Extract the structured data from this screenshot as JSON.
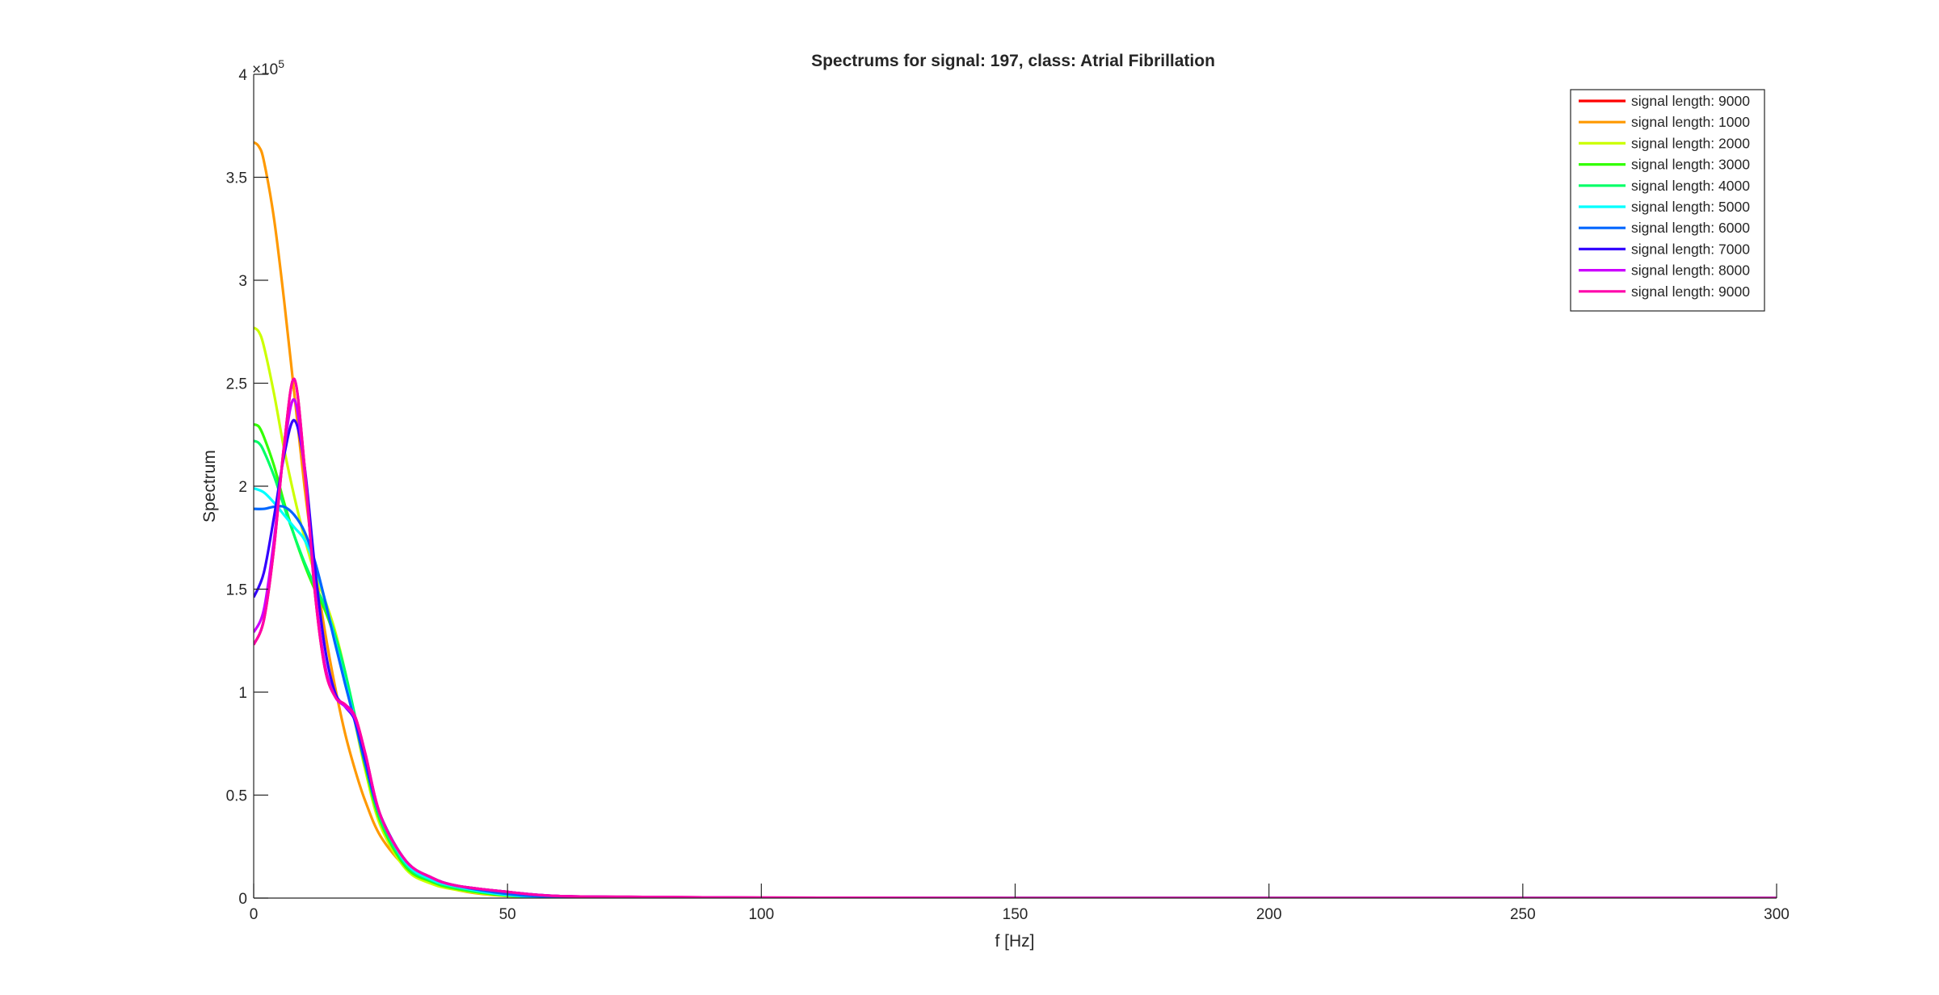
{
  "chart_data": {
    "type": "line",
    "title": "Spectrums for signal: 197, class: Atrial Fibrillation",
    "xlabel": "f [Hz]",
    "ylabel": "Spectrum",
    "y_exponent_label": "×10",
    "y_exponent_power": "5",
    "y_scale_factor": 100000,
    "xlim": [
      0,
      300
    ],
    "ylim": [
      0,
      4
    ],
    "xticks": [
      0,
      50,
      100,
      150,
      200,
      250,
      300
    ],
    "xtick_labels": [
      "0",
      "50",
      "100",
      "150",
      "200",
      "250",
      "300"
    ],
    "yticks": [
      0,
      0.5,
      1,
      1.5,
      2,
      2.5,
      3,
      3.5,
      4
    ],
    "ytick_labels": [
      "0",
      "0.5",
      "1",
      "1.5",
      "2",
      "2.5",
      "3",
      "3.5",
      "4"
    ],
    "grid": false,
    "legend_position": "top-right",
    "series": [
      {
        "name": "signal length: 9000",
        "color": "#ff0000",
        "x": [
          0,
          2,
          4,
          6,
          8,
          10,
          12,
          14,
          16,
          18,
          20,
          22,
          25,
          30,
          35,
          40,
          50,
          60,
          80,
          100,
          150,
          200,
          250,
          300
        ],
        "y": [
          1.23,
          1.35,
          1.7,
          2.2,
          2.52,
          2.1,
          1.5,
          1.12,
          0.98,
          0.94,
          0.88,
          0.7,
          0.4,
          0.18,
          0.1,
          0.06,
          0.03,
          0.01,
          0.005,
          0.002,
          0,
          0,
          0,
          0
        ]
      },
      {
        "name": "signal length: 1000",
        "color": "#ff9900",
        "x": [
          0,
          1,
          2,
          4,
          6,
          8,
          10,
          12,
          14,
          16,
          18,
          20,
          22,
          25,
          30,
          35,
          40,
          45,
          50,
          60,
          80,
          100,
          150,
          200,
          250,
          300
        ],
        "y": [
          3.67,
          3.65,
          3.58,
          3.3,
          2.9,
          2.45,
          2.0,
          1.62,
          1.3,
          1.03,
          0.8,
          0.62,
          0.47,
          0.3,
          0.15,
          0.08,
          0.04,
          0.02,
          0.01,
          0.004,
          0.001,
          0,
          0,
          0,
          0,
          0
        ]
      },
      {
        "name": "signal length: 2000",
        "color": "#ccff00",
        "x": [
          0,
          1,
          2,
          4,
          6,
          8,
          10,
          12,
          14,
          16,
          18,
          20,
          22,
          25,
          30,
          35,
          40,
          50,
          60,
          80,
          100,
          150,
          200,
          250,
          300
        ],
        "y": [
          2.77,
          2.75,
          2.68,
          2.45,
          2.18,
          1.95,
          1.75,
          1.58,
          1.45,
          1.3,
          1.1,
          0.85,
          0.62,
          0.35,
          0.14,
          0.07,
          0.04,
          0.01,
          0.004,
          0.001,
          0,
          0,
          0,
          0,
          0
        ]
      },
      {
        "name": "signal length: 3000",
        "color": "#33ff00",
        "x": [
          0,
          1,
          2,
          4,
          6,
          8,
          10,
          12,
          14,
          16,
          18,
          20,
          22,
          25,
          30,
          35,
          40,
          50,
          60,
          80,
          100,
          150,
          200,
          250,
          300
        ],
        "y": [
          2.3,
          2.29,
          2.24,
          2.1,
          1.92,
          1.76,
          1.62,
          1.5,
          1.4,
          1.26,
          1.08,
          0.86,
          0.64,
          0.37,
          0.15,
          0.08,
          0.045,
          0.012,
          0.004,
          0.001,
          0,
          0,
          0,
          0,
          0
        ]
      },
      {
        "name": "signal length: 4000",
        "color": "#00ff66",
        "x": [
          0,
          1,
          2,
          4,
          6,
          8,
          10,
          12,
          14,
          16,
          18,
          20,
          22,
          25,
          30,
          35,
          40,
          50,
          60,
          80,
          100,
          150,
          200,
          250,
          300
        ],
        "y": [
          2.22,
          2.21,
          2.17,
          2.05,
          1.9,
          1.76,
          1.63,
          1.52,
          1.42,
          1.28,
          1.1,
          0.88,
          0.66,
          0.38,
          0.16,
          0.085,
          0.05,
          0.014,
          0.005,
          0.001,
          0,
          0,
          0,
          0,
          0
        ]
      },
      {
        "name": "signal length: 5000",
        "color": "#00ffff",
        "x": [
          0,
          2,
          4,
          6,
          8,
          10,
          12,
          14,
          16,
          18,
          20,
          22,
          25,
          30,
          35,
          40,
          50,
          60,
          80,
          100,
          150,
          200,
          250,
          300
        ],
        "y": [
          1.99,
          1.97,
          1.92,
          1.86,
          1.8,
          1.74,
          1.62,
          1.45,
          1.25,
          1.05,
          0.86,
          0.66,
          0.4,
          0.17,
          0.09,
          0.055,
          0.015,
          0.005,
          0.001,
          0,
          0,
          0,
          0,
          0
        ]
      },
      {
        "name": "signal length: 6000",
        "color": "#0066ff",
        "x": [
          0,
          2,
          4,
          6,
          8,
          10,
          12,
          14,
          16,
          18,
          20,
          22,
          25,
          30,
          35,
          40,
          50,
          60,
          80,
          100,
          150,
          200,
          250,
          300
        ],
        "y": [
          1.89,
          1.89,
          1.9,
          1.9,
          1.86,
          1.78,
          1.64,
          1.45,
          1.24,
          1.04,
          0.85,
          0.65,
          0.4,
          0.18,
          0.1,
          0.06,
          0.02,
          0.006,
          0.001,
          0,
          0,
          0,
          0,
          0
        ]
      },
      {
        "name": "signal length: 7000",
        "color": "#3300ff",
        "x": [
          0,
          2,
          4,
          6,
          8,
          10,
          12,
          14,
          16,
          18,
          20,
          22,
          25,
          30,
          35,
          40,
          50,
          60,
          80,
          100,
          150,
          200,
          250,
          300
        ],
        "y": [
          1.46,
          1.58,
          1.85,
          2.15,
          2.32,
          2.1,
          1.62,
          1.22,
          1.0,
          0.93,
          0.86,
          0.68,
          0.4,
          0.18,
          0.1,
          0.06,
          0.03,
          0.01,
          0.004,
          0.001,
          0,
          0,
          0,
          0
        ]
      },
      {
        "name": "signal length: 8000",
        "color": "#cc00ff",
        "x": [
          0,
          2,
          4,
          6,
          8,
          10,
          12,
          14,
          16,
          18,
          20,
          22,
          25,
          30,
          35,
          40,
          50,
          60,
          80,
          100,
          150,
          200,
          250,
          300
        ],
        "y": [
          1.29,
          1.4,
          1.74,
          2.18,
          2.42,
          2.08,
          1.52,
          1.14,
          0.98,
          0.93,
          0.87,
          0.7,
          0.4,
          0.18,
          0.1,
          0.06,
          0.03,
          0.01,
          0.005,
          0.002,
          0,
          0,
          0,
          0
        ]
      },
      {
        "name": "signal length: 9000",
        "color": "#ff00aa",
        "x": [
          0,
          2,
          4,
          6,
          8,
          10,
          12,
          14,
          16,
          18,
          20,
          22,
          25,
          30,
          35,
          40,
          50,
          60,
          80,
          100,
          150,
          200,
          250,
          300
        ],
        "y": [
          1.23,
          1.35,
          1.7,
          2.2,
          2.52,
          2.1,
          1.5,
          1.12,
          0.98,
          0.94,
          0.88,
          0.7,
          0.4,
          0.18,
          0.1,
          0.06,
          0.03,
          0.01,
          0.005,
          0.002,
          0,
          0,
          0,
          0
        ]
      }
    ]
  }
}
